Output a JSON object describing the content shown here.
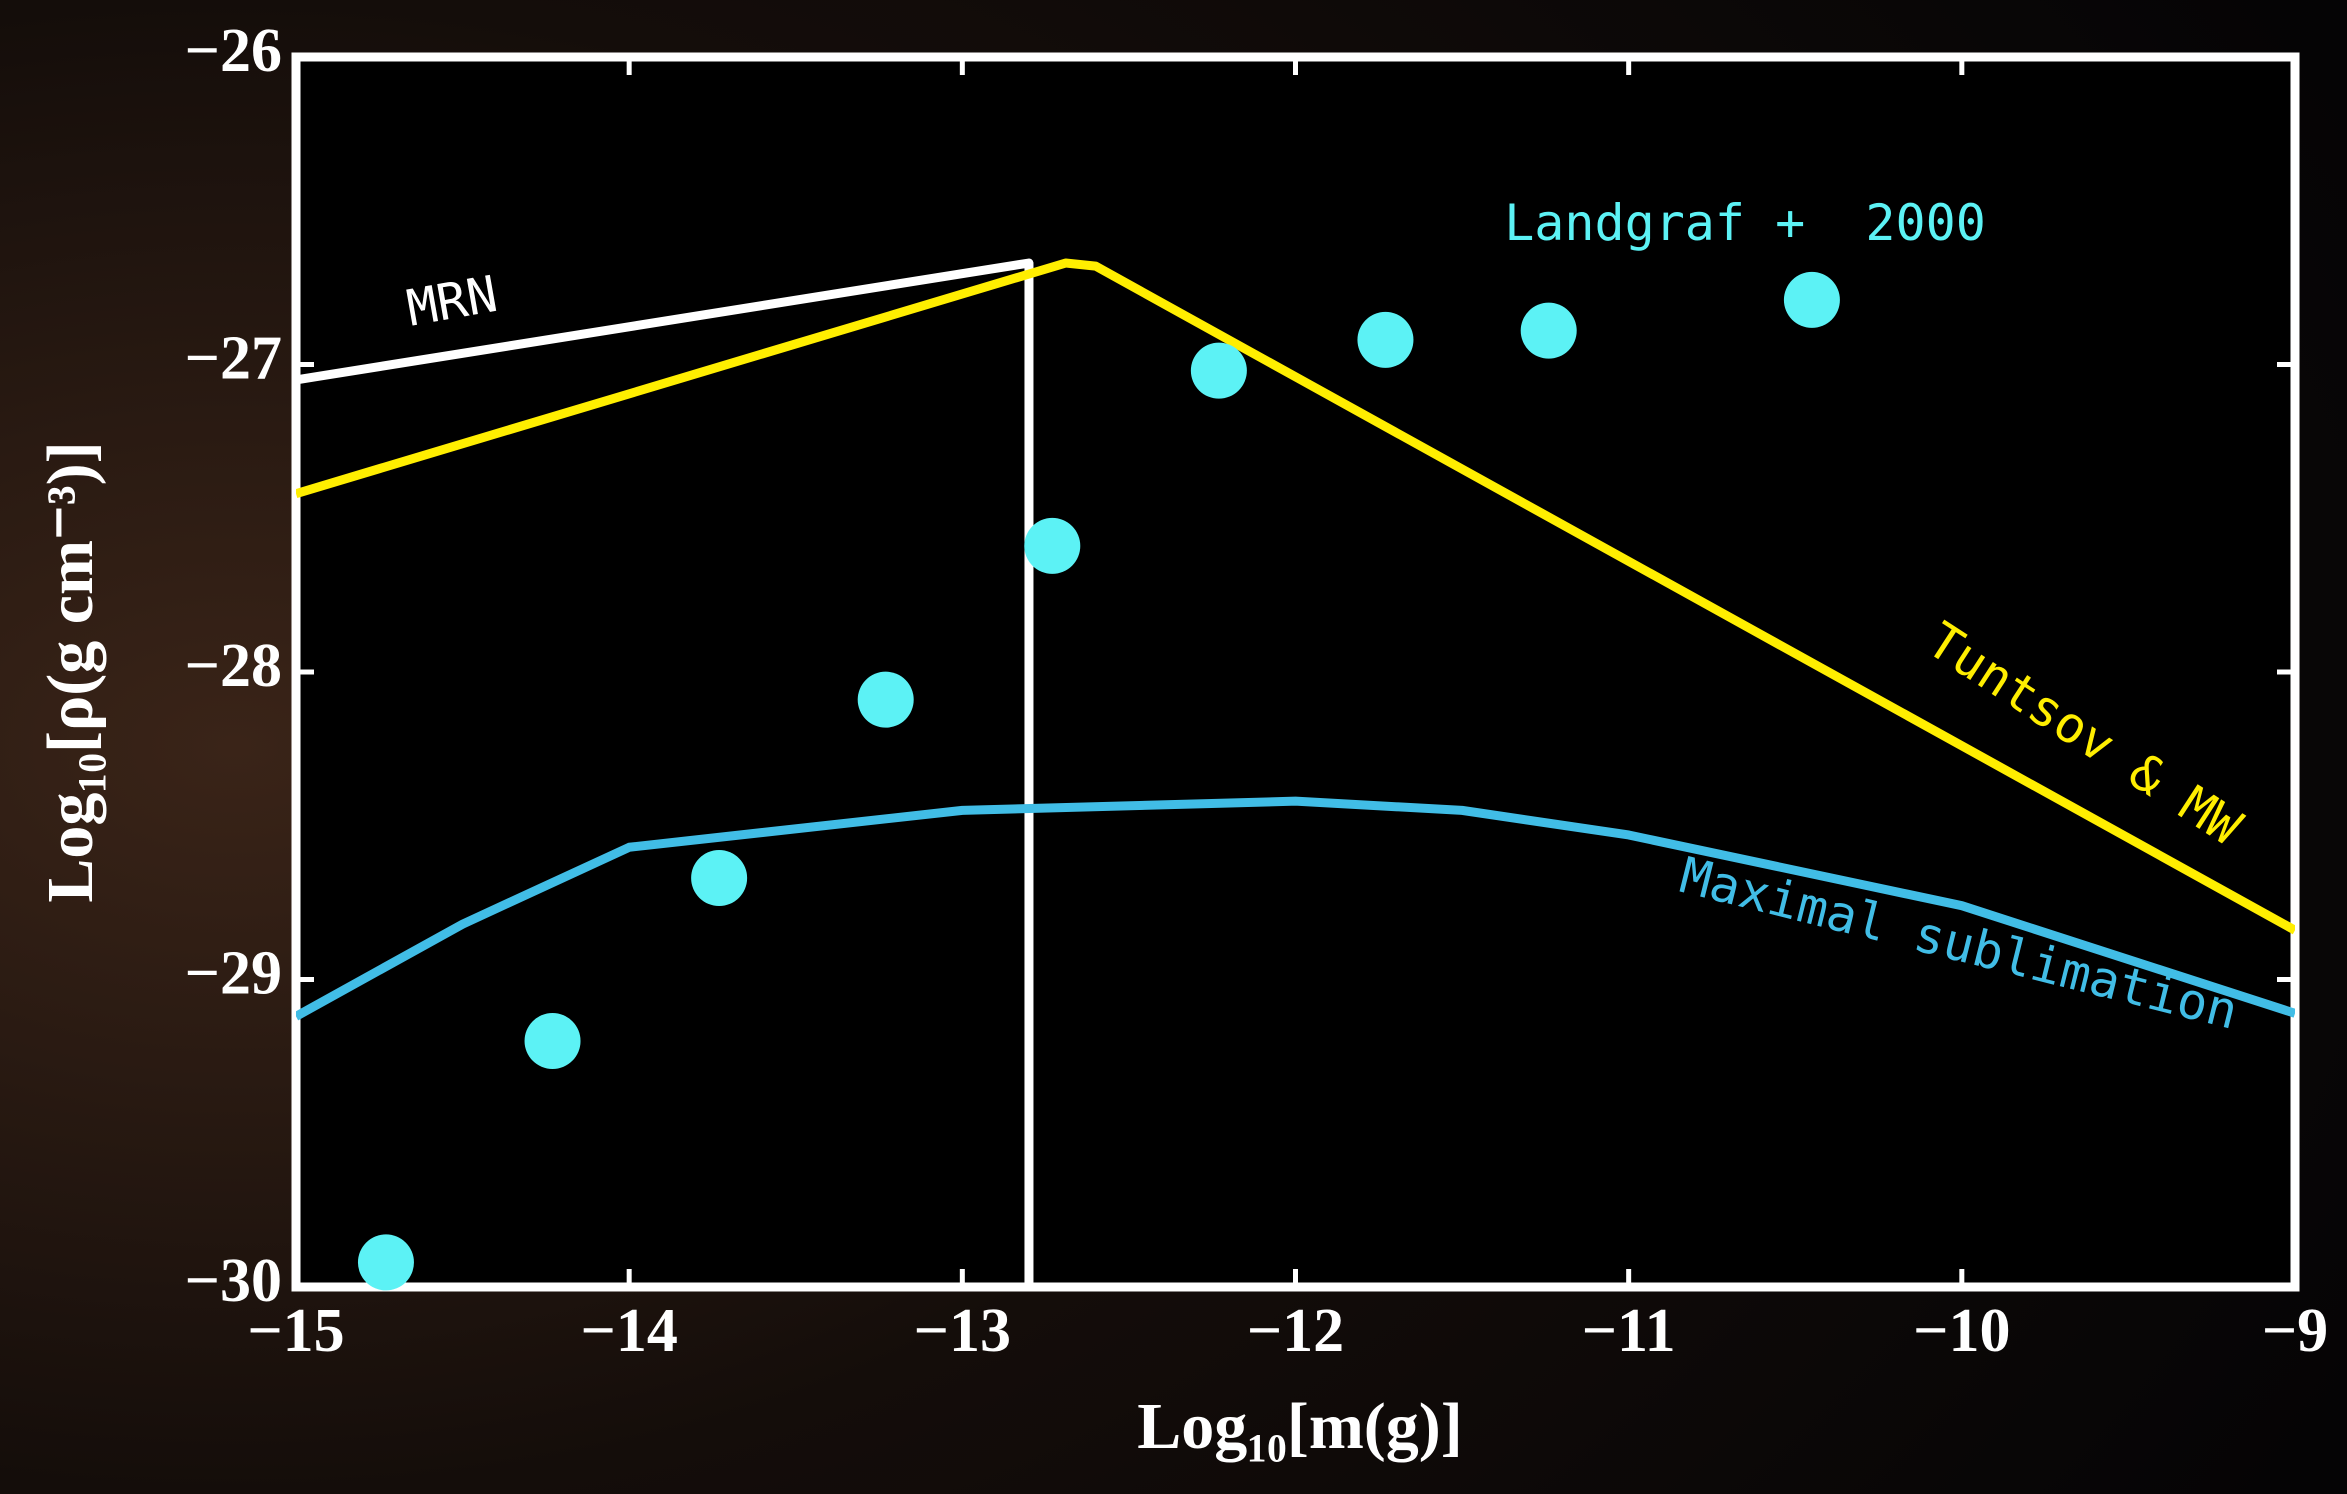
{
  "chart_data": {
    "type": "line",
    "xlabel": "Log₁₀[m(g)]",
    "ylabel": "Log₁₀[ρ(g cm⁻³)]",
    "xlim": [
      -15,
      -9
    ],
    "ylim": [
      -30,
      -26
    ],
    "xticks": [
      {
        "value": -15,
        "label": "−15"
      },
      {
        "value": -14,
        "label": "−14"
      },
      {
        "value": -13,
        "label": "−13"
      },
      {
        "value": -12,
        "label": "−12"
      },
      {
        "value": -11,
        "label": "−11"
      },
      {
        "value": -10,
        "label": "−10"
      },
      {
        "value": -9,
        "label": "−9"
      }
    ],
    "yticks": [
      {
        "value": -30,
        "label": "−30"
      },
      {
        "value": -29,
        "label": "−29"
      },
      {
        "value": -28,
        "label": "−28"
      },
      {
        "value": -27,
        "label": "−27"
      },
      {
        "value": -26,
        "label": "−26"
      }
    ],
    "series": [
      {
        "name": "MRN",
        "color": "#ffffff",
        "mode": "line",
        "x": [
          -15,
          -12.8,
          -12.8
        ],
        "values": [
          -27.05,
          -26.67,
          -30
        ]
      },
      {
        "name": "Tuntsov & MW",
        "color": "#ffee00",
        "mode": "line",
        "x": [
          -15,
          -12.69,
          -12.6,
          -9
        ],
        "values": [
          -27.42,
          -26.67,
          -26.68,
          -28.84
        ]
      },
      {
        "name": "Maximal sublimation",
        "color": "#41bde6",
        "mode": "line",
        "x": [
          -15,
          -14.5,
          -14,
          -13,
          -12,
          -11.5,
          -11,
          -10,
          -9
        ],
        "values": [
          -29.12,
          -28.82,
          -28.57,
          -28.45,
          -28.42,
          -28.45,
          -28.53,
          -28.76,
          -29.11
        ]
      },
      {
        "name": "Landgraf +  2000",
        "color": "#5cf2f5",
        "mode": "markers",
        "x": [
          -14.73,
          -14.23,
          -13.73,
          -13.23,
          -12.73,
          -12.23,
          -11.73,
          -11.24,
          -10.45
        ],
        "values": [
          -29.92,
          -29.2,
          -28.67,
          -28.09,
          -27.59,
          -27.02,
          -26.92,
          -26.89,
          -26.79
        ]
      }
    ]
  }
}
